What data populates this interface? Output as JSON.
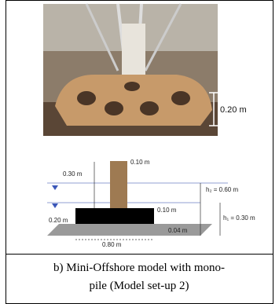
{
  "photo": {
    "height_label": "0.20 m"
  },
  "diagram": {
    "labels": {
      "pile_above": "0.30 m",
      "pile_diameter": "0.10 m",
      "h2": "h₂ = 0.60 m",
      "base_offset": "0.20 m",
      "base_height": "0.10 m",
      "h1": "h₁ = 0.30 m",
      "gap": "0.04 m",
      "base_width": "0.80 m"
    }
  },
  "caption": {
    "lines": [
      "b) Mini-Offshore model with mono-",
      "pile (Model set-up 2)"
    ]
  }
}
